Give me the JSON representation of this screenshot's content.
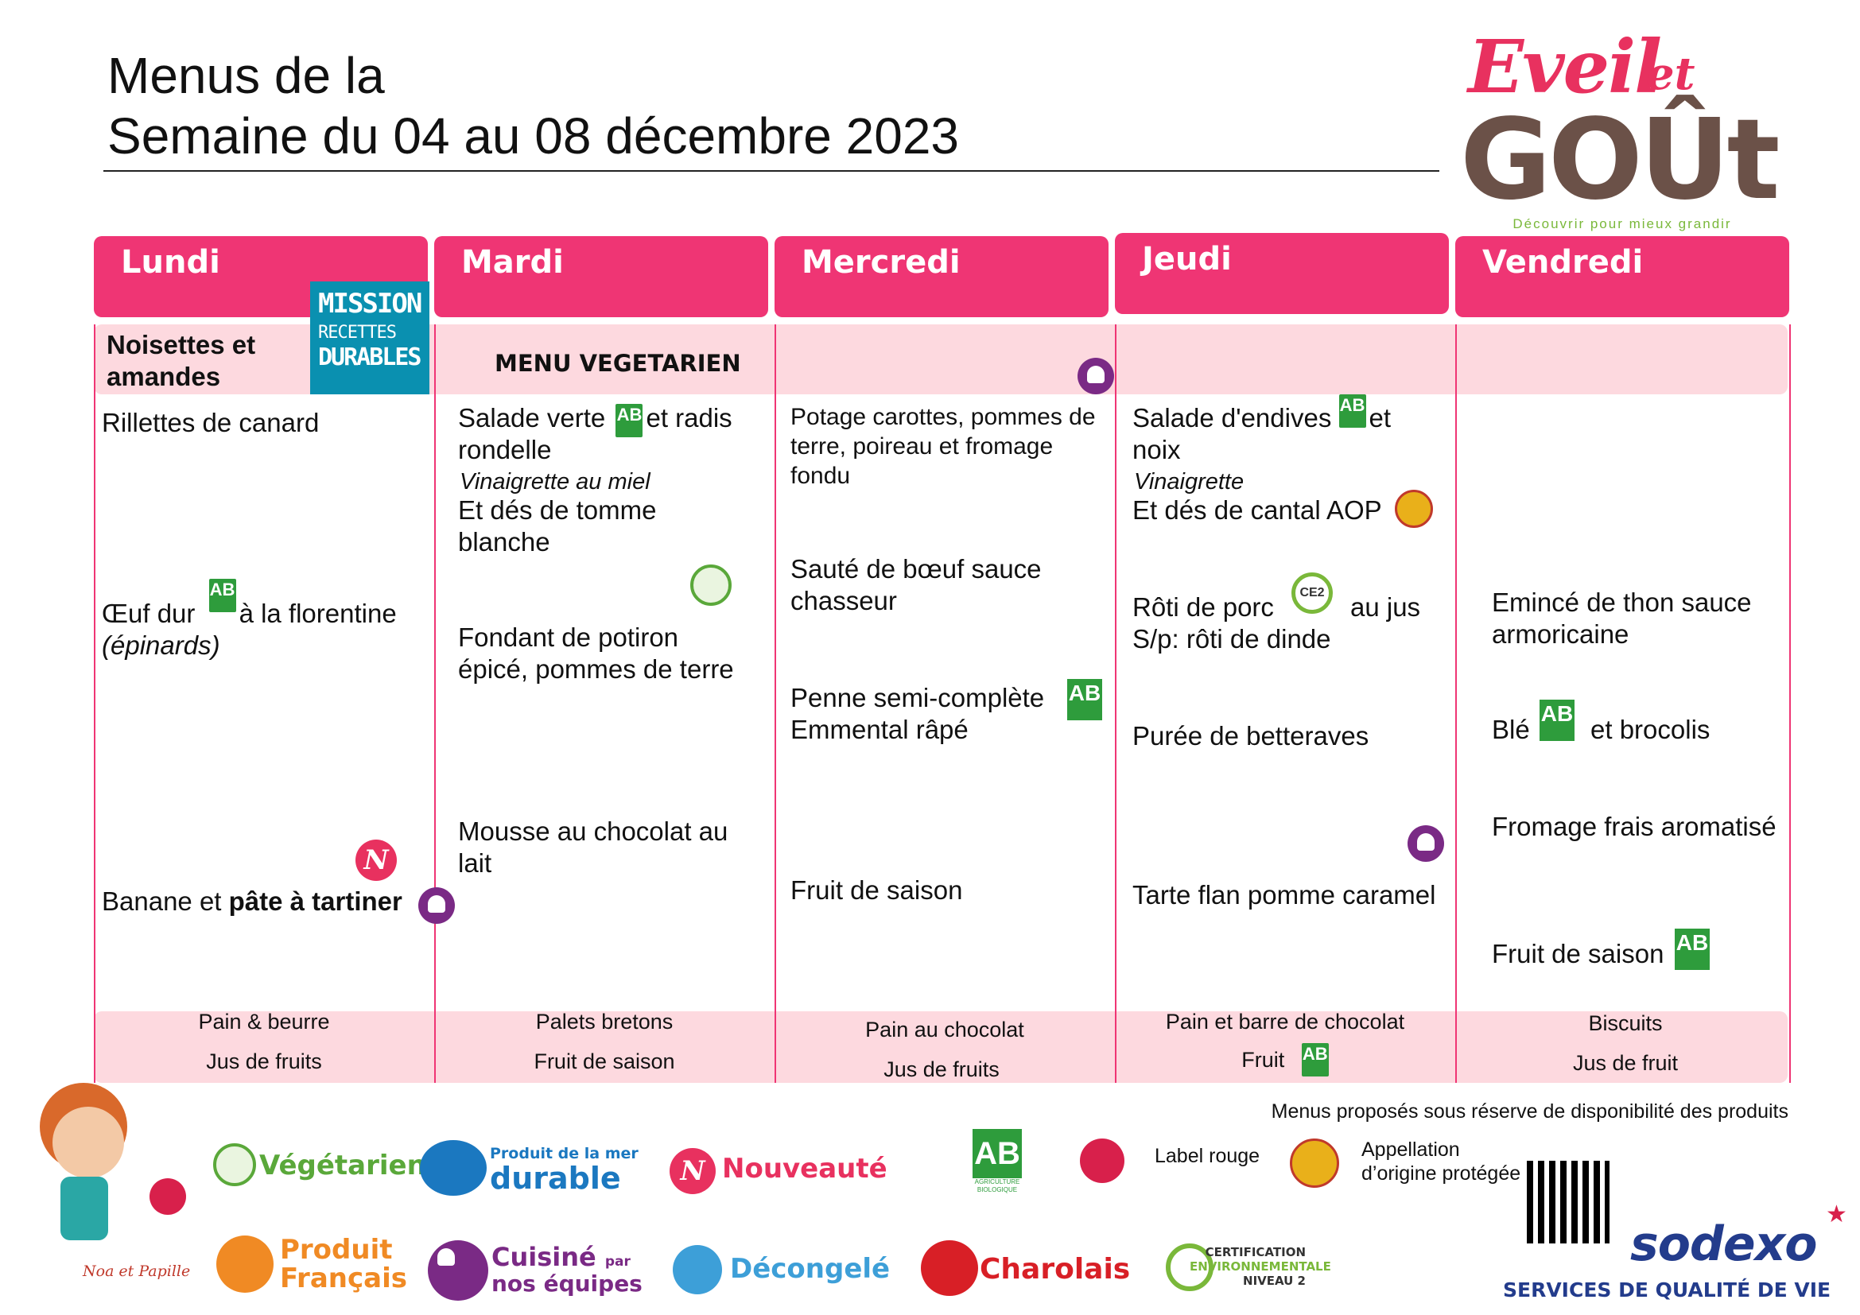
{
  "header": {
    "title_line1": "Menus de la",
    "title_line2": "Semaine du 04 au 08 décembre 2023"
  },
  "logo": {
    "line1": "Eveil",
    "line1b": "et",
    "line2": "GOÛt",
    "tagline": "Découvrir pour mieux grandir"
  },
  "days": [
    "Lundi",
    "Mardi",
    "Mercredi",
    "Jeudi",
    "Vendredi"
  ],
  "theme_row": {
    "lundi": "Noisettes et amandes",
    "mission_badge": [
      "MISSION",
      "RECETTES",
      "DURABLES"
    ],
    "mardi": "MENU VEGETARIEN"
  },
  "menu": {
    "lundi": {
      "starter": "Rillettes de canard",
      "main_a": "Œuf dur",
      "main_b": "à la florentine",
      "main_note": "(épinards)",
      "dessert_a": "Banane et ",
      "dessert_b": "pâte à tartiner"
    },
    "mardi": {
      "starter_a": "Salade verte",
      "starter_b": "et radis",
      "starter_c": "rondelle",
      "starter_note": "Vinaigrette au miel",
      "starter_d": "Et dés de tomme",
      "starter_e": "blanche",
      "main_a": "Fondant de potiron",
      "main_b": "épicé, pommes de terre",
      "dessert_a": "Mousse au chocolat au",
      "dessert_b": "lait"
    },
    "mercredi": {
      "starter_a": "Potage carottes, pommes de",
      "starter_b": "terre, poireau et fromage",
      "starter_c": "fondu",
      "main_a": "Sauté de bœuf sauce",
      "main_b": "chasseur",
      "side_a": "Penne semi-complète",
      "side_b": "Emmental râpé",
      "dessert": "Fruit de saison"
    },
    "jeudi": {
      "starter_a": "Salade d'endives",
      "starter_b": "et",
      "starter_c": "noix",
      "starter_note": "Vinaigrette",
      "starter_d": "Et dés de cantal AOP",
      "main_a": "Rôti de porc",
      "main_b": "au jus",
      "main_c": "S/p: rôti de dinde",
      "side": "Purée de betteraves",
      "dessert": "Tarte flan pomme caramel"
    },
    "vendredi": {
      "main_a": "Emincé de thon sauce",
      "main_b": "armoricaine",
      "side_a": "Blé",
      "side_b": "et brocolis",
      "dairy": "Fromage frais aromatisé",
      "dessert": "Fruit de saison"
    }
  },
  "snacks": {
    "lundi": [
      "Pain & beurre",
      "Jus de fruits"
    ],
    "mardi": [
      "Palets bretons",
      "Fruit de saison"
    ],
    "mercredi": [
      "Pain au chocolat",
      "Jus de fruits"
    ],
    "jeudi": [
      "Pain et barre de chocolat",
      "Fruit"
    ],
    "vendredi": [
      "Biscuits",
      "Jus de fruit"
    ]
  },
  "footnote": "Menus proposés sous réserve de disponibilité des produits",
  "legend": {
    "mascot": "Noa et Papille",
    "vegetarien": "Végétarien",
    "mer_line1": "Produit de la mer",
    "mer_line2": "durable",
    "nouveaute": "Nouveauté",
    "ab_label": "AB",
    "ab_sub": "AGRICULTURE BIOLOGIQUE",
    "label_rouge": "Label rouge",
    "aop_line1": "Appellation",
    "aop_line2": "d’origine protégée",
    "francais_line1": "Produit",
    "francais_line2": "Français",
    "cuisine_line1": "Cuisiné",
    "cuisine_par": "par",
    "cuisine_line2": "nos équipes",
    "decongele": "Décongelé",
    "charolais": "Charolais",
    "certif_line1": "CERTIFICATION",
    "certif_line2": "ENVIRONNEMENTALE",
    "certif_line3": "NIVEAU 2"
  },
  "brand": {
    "name": "sodexo",
    "tagline": "SERVICES DE QUALITÉ DE VIE"
  },
  "colors": {
    "accent_pink": "#ef3574",
    "band_pink": "#fdd9df",
    "bio_green": "#2e9c3c",
    "chef_purple": "#7a2a85",
    "sodexo_blue": "#233c8c"
  },
  "icons": {
    "bio": "ab-bio-icon",
    "chef": "cuisine-equipes-icon",
    "new": "nouveaute-icon",
    "veg": "vegetarien-icon",
    "aop": "aop-icon",
    "ce2": "ce2-certification-icon"
  }
}
